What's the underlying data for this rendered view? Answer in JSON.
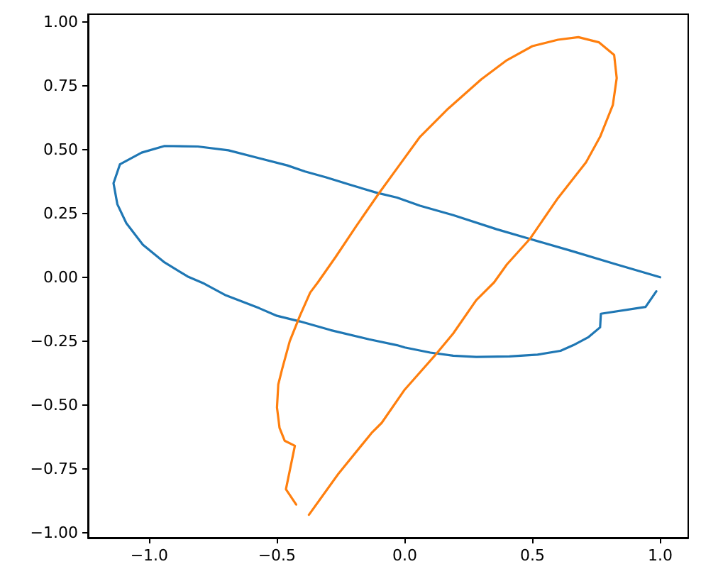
{
  "chart_data": {
    "type": "line",
    "xlim": [
      -1.24,
      1.11
    ],
    "ylim": [
      -1.02,
      1.03
    ],
    "xticks": [
      {
        "value": -1,
        "label": "−1.0"
      },
      {
        "value": -0.5,
        "label": "−0.5"
      },
      {
        "value": 0,
        "label": "0.0"
      },
      {
        "value": 0.5,
        "label": "0.5"
      },
      {
        "value": 1,
        "label": "1.0"
      }
    ],
    "yticks": [
      {
        "value": -1,
        "label": "−1.00"
      },
      {
        "value": -0.75,
        "label": "−0.75"
      },
      {
        "value": -0.5,
        "label": "−0.50"
      },
      {
        "value": -0.25,
        "label": "−0.25"
      },
      {
        "value": 0,
        "label": "0.00"
      },
      {
        "value": 0.25,
        "label": "0.25"
      },
      {
        "value": 0.5,
        "label": "0.50"
      },
      {
        "value": 0.75,
        "label": "0.75"
      },
      {
        "value": 1,
        "label": "1.00"
      }
    ],
    "grid": false,
    "marker": "none",
    "line_style": "solid",
    "series": [
      {
        "color": "#1f77b4",
        "x": [
          1.0,
          0.82,
          0.65,
          0.49,
          0.36,
          0.19,
          0.06,
          -0.03,
          -0.11,
          -0.22,
          -0.31,
          -0.39,
          -0.46,
          -0.57,
          -0.69,
          -0.81,
          -0.94,
          -1.03,
          -1.115,
          -1.14,
          -1.125,
          -1.09,
          -1.025,
          -0.94,
          -0.85,
          -0.785,
          -0.7,
          -0.57,
          -0.5,
          -0.41,
          -0.29,
          -0.14,
          -0.03,
          0.0,
          0.1,
          0.19,
          0.28,
          0.41,
          0.52,
          0.61,
          0.66,
          0.72,
          0.765,
          0.768,
          0.943,
          0.985
        ],
        "values": [
          0.0,
          0.053,
          0.104,
          0.15,
          0.188,
          0.243,
          0.28,
          0.312,
          0.331,
          0.364,
          0.392,
          0.414,
          0.438,
          0.466,
          0.497,
          0.512,
          0.514,
          0.488,
          0.442,
          0.368,
          0.286,
          0.212,
          0.127,
          0.058,
          0.003,
          -0.025,
          -0.071,
          -0.121,
          -0.151,
          -0.173,
          -0.207,
          -0.243,
          -0.266,
          -0.275,
          -0.295,
          -0.307,
          -0.312,
          -0.31,
          -0.303,
          -0.288,
          -0.266,
          -0.234,
          -0.196,
          -0.143,
          -0.116,
          -0.055
        ]
      },
      {
        "color": "#ff7f0e",
        "x": [
          -0.425,
          -0.465,
          -0.43,
          -0.47,
          -0.49,
          -0.5,
          -0.495,
          -0.48,
          -0.45,
          -0.41,
          -0.37,
          -0.34,
          -0.27,
          -0.19,
          -0.1,
          -0.02,
          0.06,
          0.17,
          0.3,
          0.4,
          0.5,
          0.6,
          0.68,
          0.76,
          0.82,
          0.83,
          0.815,
          0.765,
          0.71,
          0.6,
          0.49,
          0.4,
          0.35,
          0.28,
          0.19,
          0.115,
          0.0,
          -0.09,
          -0.13,
          -0.26,
          -0.375
        ],
        "values": [
          -0.89,
          -0.83,
          -0.66,
          -0.64,
          -0.59,
          -0.51,
          -0.42,
          -0.36,
          -0.25,
          -0.15,
          -0.06,
          -0.02,
          0.08,
          0.2,
          0.33,
          0.44,
          0.55,
          0.66,
          0.775,
          0.85,
          0.905,
          0.93,
          0.94,
          0.92,
          0.87,
          0.78,
          0.675,
          0.55,
          0.45,
          0.31,
          0.15,
          0.05,
          -0.02,
          -0.09,
          -0.22,
          -0.31,
          -0.44,
          -0.57,
          -0.61,
          -0.77,
          -0.93
        ]
      }
    ]
  }
}
